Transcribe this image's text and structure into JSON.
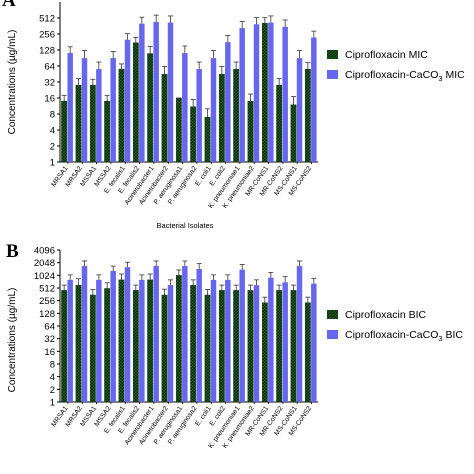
{
  "chart_data": [
    {
      "panel": "A",
      "type": "bar",
      "xlabel": "Bacterial Isolates",
      "ylabel": "Concentrations (µg/mL)",
      "yscale": "log2",
      "ylim": [
        1,
        1024
      ],
      "yticks": [
        "1",
        "2",
        "4",
        "8",
        "16",
        "32",
        "64",
        "128",
        "256",
        "512"
      ],
      "categories": [
        "MRSA1",
        "MRSA2",
        "MSSA1",
        "MSSA2",
        "E. fecalis1",
        "E. fecalis2",
        "Acinetobacter1",
        "Acinetobacter2",
        "P. aeruginosa1",
        "P. aeruginosa2",
        "E. coli1",
        "E. coli2",
        "K. pneumoniae1",
        "K. pneumoniae2",
        "MR-CoNS1",
        "MR-CoNS2",
        "MS-CoNS1",
        "MS-CoNS2"
      ],
      "legend": {
        "placement": "right"
      },
      "series": [
        {
          "name": "Ciprofloxacin MIC",
          "color": "#1a5c1a",
          "pattern": "green-checker",
          "values": [
            14,
            28,
            28,
            14,
            56,
            175,
            110,
            45,
            16,
            11,
            7,
            45,
            56,
            14,
            410,
            28,
            12,
            56
          ],
          "errors": [
            4,
            9,
            8,
            4,
            14,
            45,
            40,
            18,
            0,
            4,
            3,
            18,
            20,
            5,
            110,
            9,
            5,
            18
          ]
        },
        {
          "name": "Ciprofloxacin-CaCO3 MIC",
          "name_base": "Ciprofloxacin-CaCO",
          "name_sub": "3",
          "name_suffix": " MIC",
          "color": "#6666ee",
          "pattern": "solid",
          "values": [
            112,
            90,
            56,
            90,
            200,
            400,
            430,
            420,
            112,
            56,
            90,
            180,
            330,
            390,
            420,
            350,
            90,
            220
          ],
          "errors": [
            35,
            35,
            20,
            30,
            60,
            130,
            150,
            140,
            40,
            20,
            35,
            60,
            110,
            130,
            140,
            120,
            35,
            70
          ]
        }
      ]
    },
    {
      "panel": "B",
      "type": "bar",
      "xlabel": "",
      "ylabel": "Concentrations (µg/mL)",
      "yscale": "log2",
      "ylim": [
        1,
        4096
      ],
      "yticks": [
        "1",
        "2",
        "4",
        "8",
        "16",
        "32",
        "64",
        "128",
        "256",
        "512",
        "1024",
        "2048",
        "4096"
      ],
      "categories": [
        "MRSA1",
        "MRSA2",
        "MSSA1",
        "MSSA2",
        "E. fecalis1",
        "E. fecalis2",
        "Acinetobacter1",
        "Acinetobacter2",
        "P. aeruginosa1",
        "P. aeruginosa2",
        "E. coli1",
        "E. coli2",
        "K. pneumoniae1",
        "K. pneumoniae2",
        "MR-CoNS1",
        "MR-CoNS2",
        "MS-CoNS1",
        "MS-CoNS2"
      ],
      "legend": {
        "placement": "right"
      },
      "series": [
        {
          "name": "Ciprofloxacin BIC",
          "color": "#1a5c1a",
          "pattern": "green-checker",
          "values": [
            450,
            600,
            350,
            500,
            800,
            450,
            800,
            350,
            1024,
            600,
            350,
            450,
            450,
            450,
            230,
            450,
            450,
            230
          ],
          "errors": [
            150,
            250,
            120,
            180,
            300,
            150,
            300,
            130,
            350,
            200,
            120,
            150,
            150,
            150,
            80,
            150,
            150,
            80
          ],
          "visible_value_indices": [
            0,
            1,
            2,
            3,
            4,
            5,
            6,
            7,
            8,
            9,
            10,
            11,
            12,
            13,
            14,
            15,
            16,
            17
          ]
        },
        {
          "name": "Ciprofloxacin-CaCO3 BIC",
          "name_base": "Ciprofloxacin-CaCO",
          "name_sub": "3",
          "name_suffix": " BIC",
          "color": "#6666ee",
          "pattern": "solid",
          "values": [
            800,
            1700,
            800,
            1300,
            1600,
            800,
            1700,
            600,
            1700,
            1450,
            800,
            800,
            1400,
            600,
            900,
            700,
            1700,
            650
          ],
          "errors": [
            250,
            550,
            250,
            400,
            500,
            250,
            550,
            200,
            550,
            500,
            250,
            250,
            450,
            200,
            300,
            250,
            550,
            220
          ]
        }
      ]
    }
  ]
}
